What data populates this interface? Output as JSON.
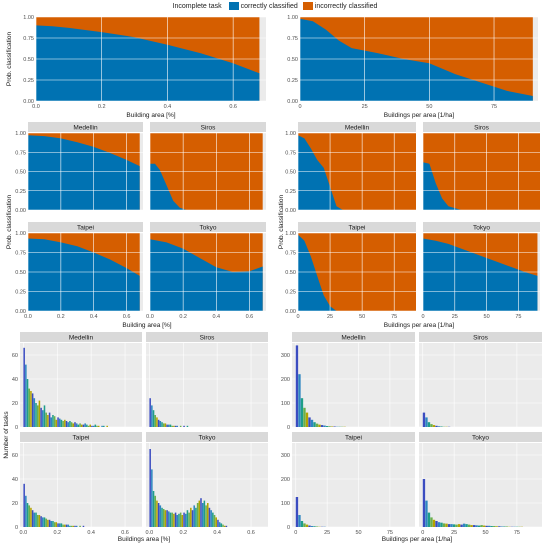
{
  "legend": {
    "title": "Incomplete task",
    "items": [
      {
        "label": "correctly classified",
        "color": "#0072B2"
      },
      {
        "label": "incorrectly classified",
        "color": "#D55E00"
      }
    ]
  },
  "chart_data": [
    {
      "type": "area",
      "panel": "A",
      "xlabel": "Building area [%]",
      "ylabel": "Prob. classification",
      "xlim": [
        0,
        0.7
      ],
      "ylim": [
        0,
        1
      ],
      "xticks": [
        0.0,
        0.2,
        0.4,
        0.6
      ],
      "xticklabels": [
        "0.0",
        "0.2",
        "0.4",
        "0.6"
      ],
      "yticks": [
        0,
        0.25,
        0.5,
        0.75,
        1
      ],
      "yticklabels": [
        "0.00",
        "0.25",
        "0.50",
        "0.75",
        "1.00"
      ],
      "x": [
        0,
        0.05,
        0.1,
        0.2,
        0.3,
        0.4,
        0.5,
        0.6,
        0.68
      ],
      "series": [
        {
          "name": "correctly classified",
          "values": [
            0.9,
            0.89,
            0.87,
            0.82,
            0.76,
            0.67,
            0.57,
            0.45,
            0.33
          ]
        }
      ]
    },
    {
      "type": "area",
      "panel": "B",
      "xlabel": "Buildings per area [1/ha]",
      "ylabel": "",
      "xlim": [
        0,
        92
      ],
      "ylim": [
        0,
        1
      ],
      "xticks": [
        0,
        25,
        50,
        75
      ],
      "xticklabels": [
        "0",
        "25",
        "50",
        "75"
      ],
      "yticks": [
        0,
        0.25,
        0.5,
        0.75,
        1
      ],
      "yticklabels": [
        "0.00",
        "0.25",
        "0.50",
        "0.75",
        "1.00"
      ],
      "x": [
        0,
        5,
        10,
        15,
        20,
        25,
        30,
        40,
        50,
        60,
        70,
        80,
        90
      ],
      "series": [
        {
          "name": "correctly classified",
          "values": [
            0.98,
            0.95,
            0.85,
            0.72,
            0.63,
            0.6,
            0.57,
            0.5,
            0.45,
            0.32,
            0.22,
            0.12,
            0.06
          ]
        }
      ]
    },
    {
      "type": "area",
      "panel": "C",
      "xlabel": "Building area [%]",
      "ylabel": "Prob. classification",
      "xlim": [
        0,
        0.7
      ],
      "ylim": [
        0,
        1
      ],
      "xticks": [
        0.0,
        0.2,
        0.4,
        0.6
      ],
      "xticklabels": [
        "0.0",
        "0.2",
        "0.4",
        "0.6"
      ],
      "yticks": [
        0,
        0.25,
        0.5,
        0.75,
        1
      ],
      "yticklabels": [
        "0.00",
        "0.25",
        "0.50",
        "0.75",
        "1.00"
      ],
      "facets": [
        {
          "name": "Medellin",
          "x": [
            0,
            0.1,
            0.2,
            0.3,
            0.4,
            0.5,
            0.6,
            0.68
          ],
          "correct": [
            0.97,
            0.96,
            0.93,
            0.88,
            0.82,
            0.74,
            0.65,
            0.57
          ]
        },
        {
          "name": "Siros",
          "x": [
            0,
            0.03,
            0.06,
            0.1,
            0.14,
            0.18,
            0.22,
            0.3,
            0.68
          ],
          "correct": [
            0.6,
            0.6,
            0.52,
            0.32,
            0.12,
            0.03,
            0.0,
            0.0,
            0.0
          ]
        },
        {
          "name": "Taipei",
          "x": [
            0,
            0.1,
            0.2,
            0.3,
            0.4,
            0.5,
            0.6,
            0.68
          ],
          "correct": [
            0.93,
            0.92,
            0.88,
            0.83,
            0.75,
            0.66,
            0.55,
            0.45
          ]
        },
        {
          "name": "Tokyo",
          "x": [
            0,
            0.1,
            0.2,
            0.3,
            0.4,
            0.5,
            0.6,
            0.68
          ],
          "correct": [
            0.92,
            0.88,
            0.8,
            0.68,
            0.56,
            0.5,
            0.51,
            0.57
          ]
        }
      ]
    },
    {
      "type": "area",
      "panel": "D",
      "xlabel": "Buildings per area [1/ha]",
      "ylabel": "Prob. classification",
      "xlim": [
        0,
        92
      ],
      "ylim": [
        0,
        1
      ],
      "xticks": [
        0,
        25,
        50,
        75
      ],
      "xticklabels": [
        "0",
        "25",
        "50",
        "75"
      ],
      "yticks": [
        0,
        0.25,
        0.5,
        0.75,
        1
      ],
      "yticklabels": [
        "0.00",
        "0.25",
        "0.50",
        "0.75",
        "1.00"
      ],
      "facets": [
        {
          "name": "Medellin",
          "x": [
            0,
            5,
            10,
            15,
            20,
            25,
            30,
            35,
            40,
            92
          ],
          "correct": [
            0.97,
            0.93,
            0.8,
            0.65,
            0.55,
            0.3,
            0.05,
            0.0,
            0.0,
            0.0
          ]
        },
        {
          "name": "Siros",
          "x": [
            0,
            5,
            10,
            15,
            20,
            30,
            40,
            92
          ],
          "correct": [
            0.62,
            0.6,
            0.35,
            0.15,
            0.05,
            0.0,
            0.0,
            0.0
          ]
        },
        {
          "name": "Taipei",
          "x": [
            0,
            5,
            10,
            15,
            20,
            25,
            30,
            40,
            92
          ],
          "correct": [
            0.98,
            0.9,
            0.7,
            0.45,
            0.2,
            0.06,
            0.0,
            0.0,
            0.0
          ]
        },
        {
          "name": "Tokyo",
          "x": [
            0,
            10,
            20,
            30,
            40,
            50,
            60,
            70,
            80,
            90
          ],
          "correct": [
            0.93,
            0.9,
            0.86,
            0.8,
            0.74,
            0.68,
            0.62,
            0.56,
            0.5,
            0.45
          ]
        }
      ]
    },
    {
      "type": "bar",
      "panel": "E",
      "xlabel": "Buildings area [%]",
      "ylabel": "Number of tasks",
      "xlim": [
        -0.02,
        0.7
      ],
      "ylim": [
        0,
        70
      ],
      "xticks": [
        0.0,
        0.2,
        0.4,
        0.6
      ],
      "xticklabels": [
        "0.0",
        "0.2",
        "0.4",
        "0.6"
      ],
      "yticks": [
        0,
        20,
        40,
        60
      ],
      "yticklabels": [
        "0",
        "20",
        "40",
        "60"
      ],
      "bin_start": 0,
      "bin_width": 0.01,
      "facets": [
        {
          "name": "Medellin",
          "counts": [
            66,
            52,
            40,
            32,
            30,
            28,
            24,
            20,
            18,
            22,
            16,
            14,
            18,
            12,
            10,
            12,
            8,
            10,
            9,
            6,
            8,
            7,
            6,
            5,
            6,
            5,
            4,
            5,
            4,
            3,
            4,
            3,
            2,
            3,
            2,
            2,
            3,
            2,
            1,
            2,
            1,
            1,
            2,
            1,
            1,
            0,
            1,
            1,
            0,
            1
          ]
        },
        {
          "name": "Siros",
          "counts": [
            24,
            18,
            14,
            10,
            8,
            6,
            5,
            4,
            3,
            3,
            2,
            2,
            2,
            1,
            1,
            1,
            1,
            0,
            1,
            0,
            1,
            0,
            1
          ]
        },
        {
          "name": "Taipei",
          "counts": [
            36,
            26,
            20,
            18,
            16,
            14,
            12,
            12,
            10,
            10,
            9,
            8,
            8,
            7,
            6,
            6,
            5,
            5,
            4,
            4,
            3,
            3,
            3,
            2,
            2,
            2,
            2,
            1,
            1,
            1,
            1,
            1,
            0,
            1,
            0,
            1
          ]
        },
        {
          "name": "Tokyo",
          "counts": [
            65,
            48,
            30,
            26,
            22,
            20,
            18,
            16,
            15,
            14,
            14,
            13,
            12,
            12,
            11,
            12,
            10,
            11,
            12,
            10,
            12,
            11,
            14,
            12,
            16,
            14,
            18,
            16,
            20,
            22,
            24,
            20,
            22,
            18,
            20,
            16,
            14,
            12,
            10,
            8,
            6,
            4,
            3,
            2,
            1,
            1
          ]
        }
      ]
    },
    {
      "type": "bar",
      "panel": "F",
      "xlabel": "Buildings per area [1/ha]",
      "ylabel": "",
      "xlim": [
        -3,
        95
      ],
      "ylim": [
        0,
        350
      ],
      "xticks": [
        0,
        25,
        50,
        75
      ],
      "xticklabels": [
        "0",
        "25",
        "50",
        "75"
      ],
      "yticks": [
        0,
        100,
        200,
        300
      ],
      "yticklabels": [
        "0",
        "100",
        "200",
        "300"
      ],
      "bin_start": 0,
      "bin_width": 2,
      "facets": [
        {
          "name": "Medellin",
          "counts": [
            340,
            220,
            120,
            80,
            60,
            40,
            30,
            20,
            14,
            10,
            8,
            6,
            4,
            3,
            2,
            2,
            1,
            1,
            1,
            1
          ]
        },
        {
          "name": "Siros",
          "counts": [
            60,
            40,
            20,
            12,
            8,
            5,
            3,
            2,
            1,
            1,
            1
          ]
        },
        {
          "name": "Taipei",
          "counts": [
            125,
            50,
            25,
            15,
            10,
            6,
            4,
            3,
            2,
            1,
            1,
            1
          ]
        },
        {
          "name": "Tokyo",
          "counts": [
            200,
            110,
            60,
            40,
            30,
            25,
            20,
            18,
            15,
            14,
            12,
            12,
            11,
            10,
            12,
            10,
            14,
            12,
            10,
            8,
            8,
            7,
            6,
            8,
            6,
            5,
            5,
            4,
            4,
            3,
            3,
            2,
            2,
            2,
            1,
            1,
            1,
            1,
            1,
            1
          ]
        }
      ]
    }
  ]
}
